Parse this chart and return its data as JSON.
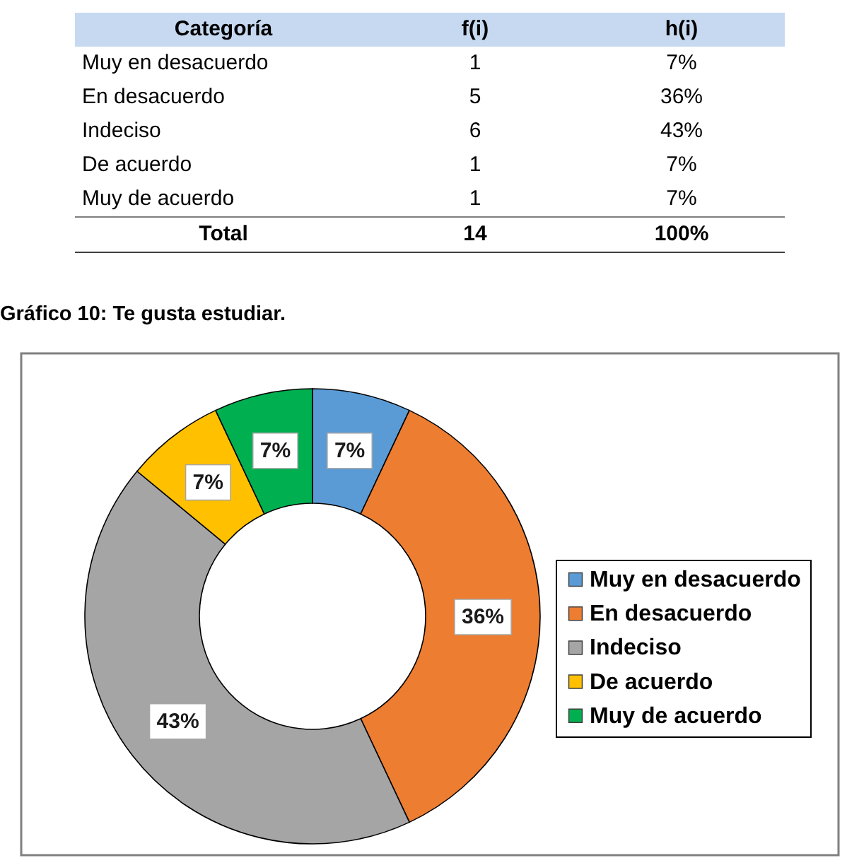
{
  "chart_data": [
    {
      "type": "other",
      "ylabel": "Categoría",
      "categories": [
        "Muy en desacuerdo",
        "En desacuerdo",
        "Indeciso",
        "De acuerdo",
        "Muy de acuerdo",
        "Total"
      ],
      "data_labels": true,
      "series": [
        {
          "name": "f(i)",
          "values": [
            1,
            5,
            6,
            1,
            1,
            14
          ]
        },
        {
          "name": "h(i)",
          "values": [
            7,
            36,
            43,
            7,
            7,
            100
          ],
          "value_labels": [
            "7%",
            "36%",
            "43%",
            "7%",
            "7%",
            "100%"
          ]
        }
      ]
    },
    {
      "type": "donut",
      "title": "Gráfico 10: Te gusta estudiar.",
      "categories": [
        "Muy en desacuerdo",
        "En desacuerdo",
        "Indeciso",
        "De acuerdo",
        "Muy de acuerdo"
      ],
      "values": [
        7,
        36,
        43,
        7,
        7
      ],
      "value_labels": [
        "7%",
        "36%",
        "43%",
        "7%",
        "7%"
      ],
      "colors": [
        "#5b9bd5",
        "#ed7d31",
        "#a5a5a5",
        "#ffc000",
        "#00b050"
      ],
      "legend": "right"
    }
  ]
}
